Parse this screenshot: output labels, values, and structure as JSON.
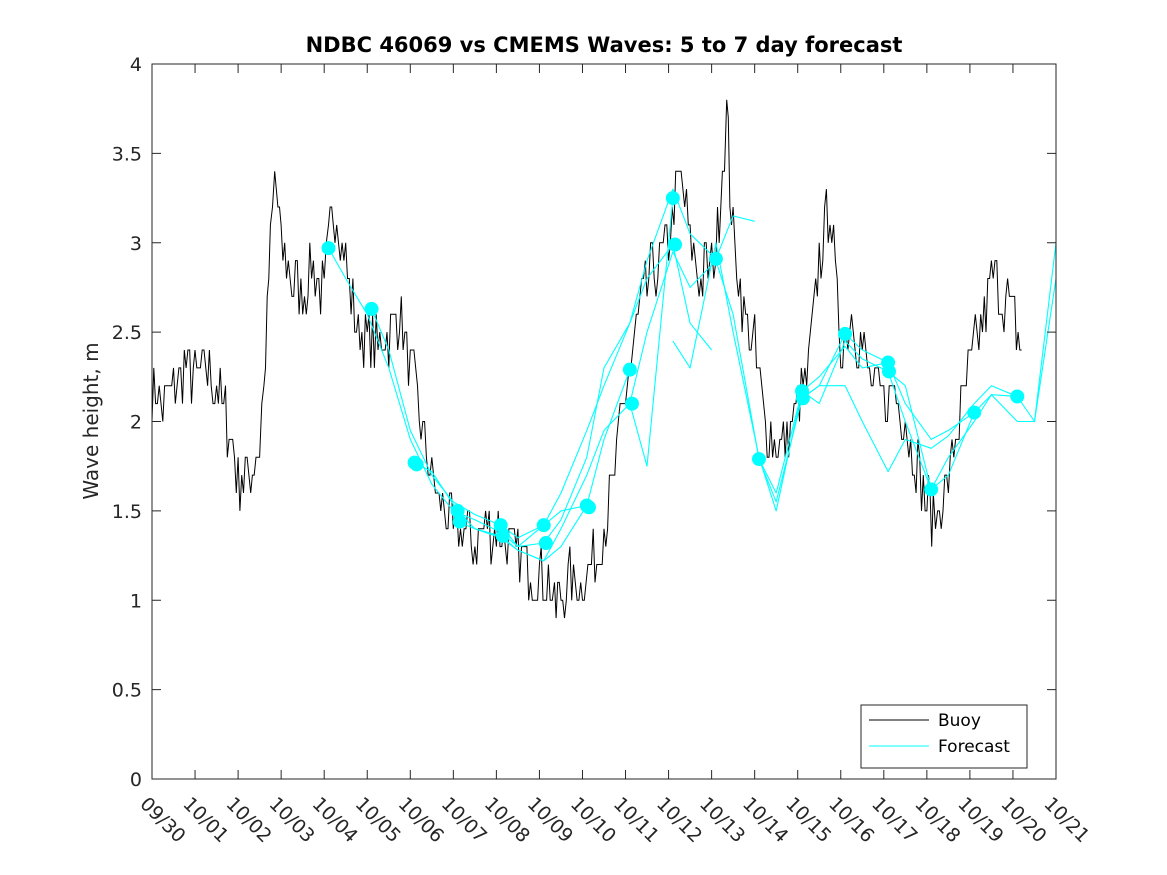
{
  "chart_data": {
    "type": "line",
    "title": "NDBC 46069 vs CMEMS Waves: 5 to 7 day forecast",
    "xlabel": "",
    "ylabel": "Wave height, m",
    "xlim": [
      0,
      21
    ],
    "ylim": [
      0,
      4
    ],
    "x_tick_labels": [
      "09/30",
      "10/01",
      "10/02",
      "10/03",
      "10/04",
      "10/05",
      "10/06",
      "10/07",
      "10/08",
      "10/09",
      "10/10",
      "10/11",
      "10/12",
      "10/13",
      "10/14",
      "10/15",
      "10/16",
      "10/17",
      "10/18",
      "10/19",
      "10/20",
      "10/21"
    ],
    "y_ticks": [
      0,
      0.5,
      1,
      1.5,
      2,
      2.5,
      3,
      3.5,
      4
    ],
    "y_tick_labels": [
      "0",
      "0.5",
      "1",
      "1.5",
      "2",
      "2.5",
      "3",
      "3.5",
      "4"
    ],
    "grid": false,
    "legend": {
      "position": "bottom-right",
      "entries": [
        {
          "label": "Buoy",
          "color": "#000000"
        },
        {
          "label": "Forecast",
          "color": "#00FFFF"
        }
      ]
    },
    "series": [
      {
        "name": "Buoy",
        "color": "#000000",
        "x": [
          0,
          0.25,
          0.5,
          0.75,
          1,
          1.25,
          1.5,
          1.75,
          2,
          2.25,
          2.5,
          2.6,
          2.75,
          2.85,
          3,
          3.25,
          3.5,
          3.75,
          4,
          4.1,
          4.25,
          4.5,
          4.75,
          5,
          5.25,
          5.5,
          5.75,
          6,
          6.25,
          6.5,
          6.75,
          7,
          7.25,
          7.5,
          7.75,
          8,
          8.25,
          8.5,
          8.75,
          9,
          9.25,
          9.35,
          9.5,
          9.75,
          10,
          10.25,
          10.5,
          10.75,
          11,
          11.25,
          11.5,
          11.75,
          12,
          12.25,
          12.5,
          12.75,
          13,
          13.1,
          13.25,
          13.35,
          13.5,
          13.75,
          14,
          14.25,
          14.5,
          14.75,
          15,
          15.25,
          15.5,
          15.75,
          16,
          16.25,
          16.5,
          16.75,
          17,
          17.25,
          17.5,
          17.75,
          18,
          18.15,
          18.25,
          18.5,
          18.75,
          19,
          19.25,
          19.5,
          19.75,
          20,
          20.2
        ],
        "y": [
          2.2,
          2.1,
          2.2,
          2.3,
          2.25,
          2.3,
          2.2,
          2.0,
          1.7,
          1.7,
          1.9,
          2.2,
          3.0,
          3.4,
          3.0,
          2.8,
          2.7,
          2.9,
          2.7,
          3.0,
          3.2,
          2.9,
          2.5,
          2.5,
          2.4,
          2.5,
          2.6,
          2.3,
          2.0,
          1.7,
          1.5,
          1.4,
          1.4,
          1.3,
          1.4,
          1.4,
          1.3,
          1.25,
          1.2,
          1.15,
          1.1,
          0.95,
          1.05,
          1.1,
          1.1,
          1.2,
          1.4,
          1.7,
          2.2,
          2.5,
          2.75,
          2.9,
          3.0,
          3.4,
          3.0,
          2.8,
          2.9,
          3.0,
          3.4,
          3.7,
          3.0,
          2.6,
          2.4,
          2.0,
          1.85,
          1.9,
          2.1,
          2.3,
          2.9,
          3.2,
          2.4,
          2.6,
          2.4,
          2.2,
          2.1,
          2.2,
          2.0,
          1.8,
          1.55,
          1.45,
          1.5,
          1.65,
          2.0,
          2.3,
          2.5,
          2.8,
          2.7,
          2.6,
          2.4
        ]
      },
      {
        "name": "Forecast",
        "color": "#00FFFF",
        "segments": [
          {
            "x": [
              4.1,
              4.5,
              5.0,
              5.5,
              6.0,
              6.5,
              7.0,
              7.5,
              8.1,
              8.5,
              9.1
            ],
            "y": [
              2.97,
              2.8,
              2.6,
              2.3,
              1.9,
              1.65,
              1.5,
              1.45,
              1.38,
              1.3,
              1.32
            ]
          },
          {
            "x": [
              5.1,
              5.5,
              6.0,
              6.5,
              7.0,
              7.5,
              8.1,
              8.5,
              9.1,
              9.5,
              10.1
            ],
            "y": [
              2.63,
              2.4,
              1.95,
              1.7,
              1.55,
              1.48,
              1.42,
              1.35,
              1.42,
              1.5,
              1.53
            ]
          },
          {
            "x": [
              6.1,
              6.5,
              7.1,
              7.5,
              8.1,
              8.5,
              9.1,
              9.5,
              10.1,
              10.5,
              11.1
            ],
            "y": [
              1.77,
              1.72,
              1.5,
              1.4,
              1.36,
              1.28,
              1.22,
              1.3,
              1.53,
              1.9,
              2.29
            ]
          },
          {
            "x": [
              7.1,
              7.5,
              8.1,
              8.5,
              9.1,
              9.5,
              10.1,
              10.5,
              11.1,
              11.5,
              12.1
            ],
            "y": [
              1.44,
              1.4,
              1.35,
              1.28,
              1.22,
              1.4,
              1.7,
              1.95,
              2.1,
              1.75,
              3.25
            ]
          },
          {
            "x": [
              8.1,
              8.5,
              9.1,
              9.5,
              10.1,
              10.5,
              11.1,
              11.5,
              12.1,
              12.5,
              13.0
            ],
            "y": [
              1.42,
              1.3,
              1.42,
              1.6,
              1.95,
              2.2,
              2.55,
              2.8,
              2.99,
              2.55,
              2.4
            ]
          },
          {
            "x": [
              9.1,
              9.5,
              10.1,
              10.5,
              11.1,
              11.5,
              12.1,
              12.5,
              13.1,
              13.5,
              14.0
            ],
            "y": [
              1.32,
              1.45,
              1.8,
              2.3,
              2.55,
              2.9,
              3.3,
              3.05,
              2.91,
              3.15,
              3.12
            ]
          },
          {
            "x": [
              11.1,
              11.5,
              12.1,
              12.5,
              13.1,
              13.5,
              14.1,
              14.5,
              15.1,
              15.5,
              16.1
            ],
            "y": [
              2.1,
              2.5,
              2.95,
              2.75,
              2.9,
              2.6,
              1.79,
              1.55,
              2.13,
              2.2,
              2.49
            ]
          },
          {
            "x": [
              12.1,
              12.5,
              13.1,
              13.5,
              14.1,
              14.5,
              15.1,
              15.5,
              16.1,
              16.5,
              17.1
            ],
            "y": [
              2.45,
              2.3,
              3.0,
              2.5,
              1.8,
              1.5,
              2.17,
              2.25,
              2.42,
              2.3,
              2.33
            ]
          },
          {
            "x": [
              14.1,
              14.5,
              15.1,
              15.5,
              16.1,
              16.5,
              17.1,
              17.5,
              18.1,
              18.5,
              19.1
            ],
            "y": [
              1.79,
              1.6,
              2.17,
              2.1,
              2.45,
              2.35,
              2.28,
              2.0,
              1.62,
              1.7,
              2.05
            ]
          },
          {
            "x": [
              15.1,
              15.5,
              16.1,
              16.5,
              17.1,
              17.5,
              18.1,
              18.5,
              19.1,
              19.5,
              20.1
            ],
            "y": [
              2.13,
              2.2,
              2.2,
              2.0,
              1.72,
              1.9,
              1.85,
              1.92,
              2.1,
              2.2,
              2.14
            ]
          },
          {
            "x": [
              16.1,
              16.5,
              17.1,
              17.5,
              18.1,
              18.5,
              19.1,
              19.5,
              20.1,
              20.5,
              21.0
            ],
            "y": [
              2.49,
              2.4,
              2.33,
              2.1,
              1.9,
              1.95,
              2.05,
              2.15,
              2.14,
              2.0,
              3.0
            ]
          },
          {
            "x": [
              17.1,
              17.5,
              18.1,
              18.5,
              19.1,
              19.5,
              20.1,
              20.5,
              21.0
            ],
            "y": [
              2.28,
              2.2,
              1.62,
              1.8,
              2.0,
              2.15,
              2.0,
              2.0,
              2.8
            ]
          }
        ],
        "markers": {
          "x": [
            4.1,
            5.1,
            6.1,
            6.15,
            7.1,
            7.15,
            8.1,
            8.15,
            9.1,
            9.15,
            10.1,
            10.15,
            11.1,
            11.15,
            12.1,
            12.15,
            13.1,
            14.1,
            15.1,
            15.12,
            16.1,
            17.1,
            17.12,
            18.1,
            19.1,
            20.1
          ],
          "y": [
            2.97,
            2.63,
            1.77,
            1.76,
            1.5,
            1.44,
            1.42,
            1.36,
            1.42,
            1.32,
            1.53,
            1.52,
            2.29,
            2.1,
            3.25,
            2.99,
            2.91,
            1.79,
            2.17,
            2.13,
            2.49,
            2.33,
            2.28,
            1.62,
            2.05,
            2.14
          ]
        }
      }
    ]
  }
}
